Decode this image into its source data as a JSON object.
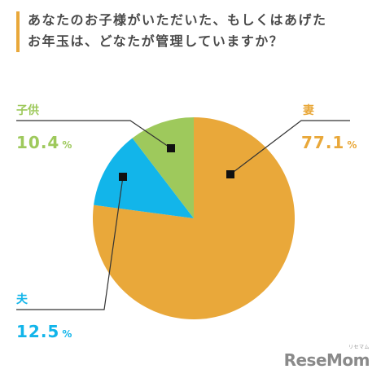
{
  "chart_data": {
    "type": "pie",
    "title_lines": [
      "あなたのお子様がいただいた、もしくはあげた",
      "お年玉は、どなたが管理していますか？"
    ],
    "slices": [
      {
        "label": "妻",
        "value": 77.1,
        "display": "77.1",
        "color": "#e9a83a",
        "label_color": "#e9a83a"
      },
      {
        "label": "夫",
        "value": 12.5,
        "display": "12.5",
        "color": "#12b5ea",
        "label_color": "#12b5ea"
      },
      {
        "label": "子供",
        "value": 10.4,
        "display": "10.4",
        "color": "#9ec95c",
        "label_color": "#9ec95c"
      }
    ],
    "unit": "%",
    "start": "12 o'clock",
    "direction": "clockwise"
  },
  "brand": {
    "logo_text": "ReseMom",
    "logo_small": "リセマム"
  }
}
